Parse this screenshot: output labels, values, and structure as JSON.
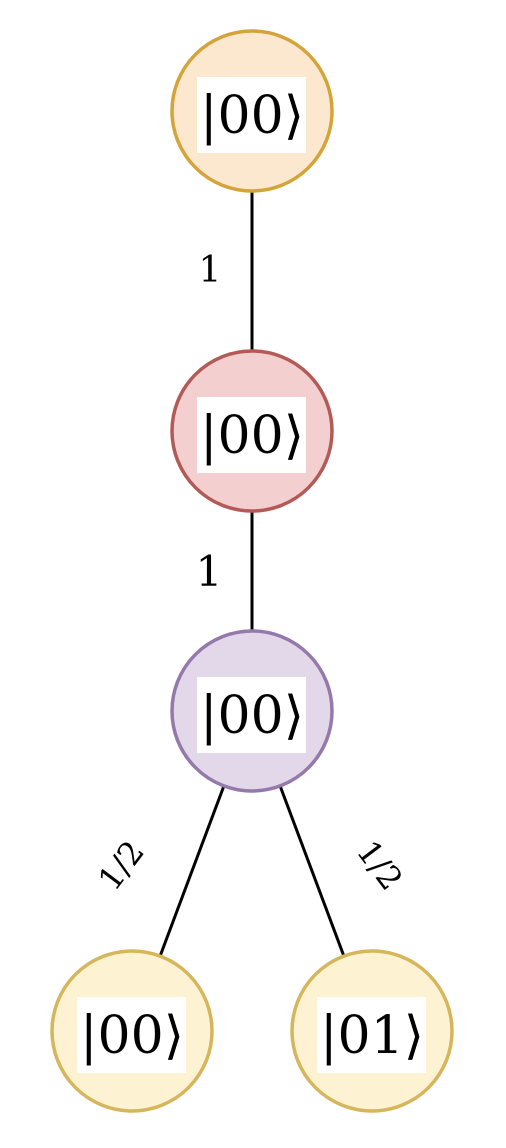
{
  "nodes": [
    {
      "id": "n1",
      "label": "|00⟩",
      "fill": "#fce8cf",
      "stroke": "#d4a43a"
    },
    {
      "id": "n2",
      "label": "|00⟩",
      "fill": "#f3cfcf",
      "stroke": "#b35a57"
    },
    {
      "id": "n3",
      "label": "|00⟩",
      "fill": "#e2d8e9",
      "stroke": "#9579ab"
    },
    {
      "id": "n4",
      "label": "|00⟩",
      "fill": "#fdf3d2",
      "stroke": "#d6b65c"
    },
    {
      "id": "n5",
      "label": "|01⟩",
      "fill": "#fdf3d2",
      "stroke": "#d6b65c"
    }
  ],
  "edges": [
    {
      "from": "n1",
      "to": "n2",
      "label": "1"
    },
    {
      "from": "n2",
      "to": "n3",
      "label": "1"
    },
    {
      "from": "n3",
      "to": "n4",
      "label": "1/2"
    },
    {
      "from": "n3",
      "to": "n5",
      "label": "1/2"
    }
  ]
}
